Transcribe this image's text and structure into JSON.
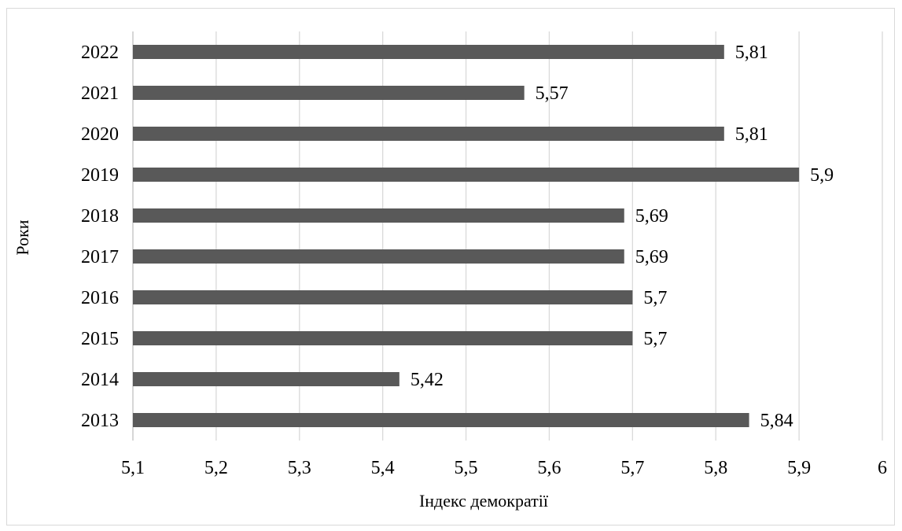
{
  "chart_data": {
    "type": "bar",
    "orientation": "horizontal",
    "title": "",
    "xlabel": "Індекс демократії",
    "ylabel": "Роки",
    "categories": [
      "2022",
      "2021",
      "2020",
      "2019",
      "2018",
      "2017",
      "2016",
      "2015",
      "2014",
      "2013"
    ],
    "values": [
      5.81,
      5.57,
      5.81,
      5.9,
      5.69,
      5.69,
      5.7,
      5.7,
      5.42,
      5.84
    ],
    "value_labels": [
      "5,81",
      "5,57",
      "5,81",
      "5,9",
      "5,69",
      "5,69",
      "5,7",
      "5,7",
      "5,42",
      "5,84"
    ],
    "xlim": [
      5.1,
      6
    ],
    "x_ticks": [
      5.1,
      5.2,
      5.3,
      5.4,
      5.5,
      5.6,
      5.7,
      5.8,
      5.9,
      6
    ],
    "x_tick_labels": [
      "5,1",
      "5,2",
      "5,3",
      "5,4",
      "5,5",
      "5,6",
      "5,7",
      "5,8",
      "5,9",
      "6"
    ],
    "grid": true,
    "legend": "none",
    "bar_color": "#595959"
  }
}
